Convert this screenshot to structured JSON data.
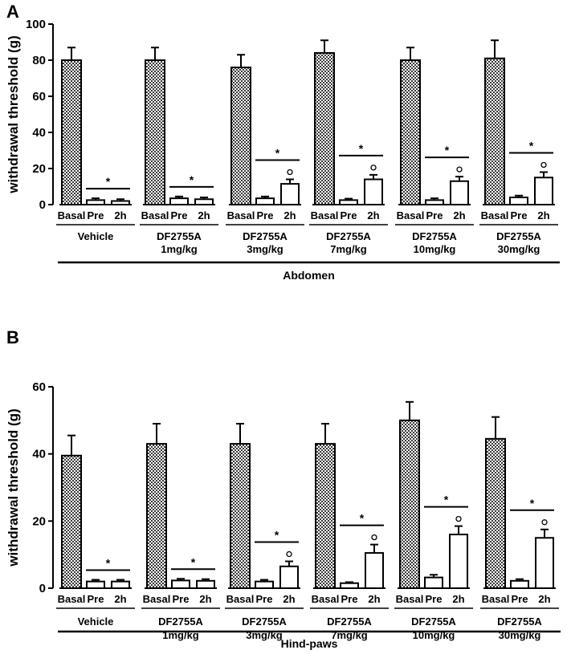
{
  "chart_data": [
    {
      "panel": "A",
      "type": "bar",
      "ylabel": "withdrawal threshold (g)",
      "ylim": [
        0,
        100
      ],
      "yticks": [
        0,
        20,
        40,
        60,
        80,
        100
      ],
      "region": "Abdomen",
      "groups": [
        {
          "label": "Vehicle",
          "dose": "",
          "basal": 80,
          "basal_err": 7,
          "pre": 2.5,
          "pre_err": 1,
          "h2": 2,
          "h2_err": 1,
          "significance": "*",
          "diff_marker": ""
        },
        {
          "label": "DF2755A",
          "dose": "1mg/kg",
          "basal": 80,
          "basal_err": 7,
          "pre": 3.5,
          "pre_err": 1,
          "h2": 3,
          "h2_err": 1,
          "significance": "*",
          "diff_marker": ""
        },
        {
          "label": "DF2755A",
          "dose": "3mg/kg",
          "basal": 76,
          "basal_err": 7,
          "pre": 3.5,
          "pre_err": 1,
          "h2": 11.5,
          "h2_err": 2.5,
          "significance": "*",
          "diff_marker": "°"
        },
        {
          "label": "DF2755A",
          "dose": "7mg/kg",
          "basal": 84,
          "basal_err": 7,
          "pre": 2.5,
          "pre_err": 0.8,
          "h2": 14,
          "h2_err": 2.5,
          "significance": "*",
          "diff_marker": "°"
        },
        {
          "label": "DF2755A",
          "dose": "10mg/kg",
          "basal": 80,
          "basal_err": 7,
          "pre": 2.5,
          "pre_err": 1,
          "h2": 13,
          "h2_err": 2.5,
          "significance": "*",
          "diff_marker": "°"
        },
        {
          "label": "DF2755A",
          "dose": "30mg/kg",
          "basal": 81,
          "basal_err": 10,
          "pre": 4,
          "pre_err": 1,
          "h2": 15,
          "h2_err": 3,
          "significance": "*",
          "diff_marker": "°"
        }
      ],
      "categories": [
        "Basal",
        "Pre",
        "2h"
      ]
    },
    {
      "panel": "B",
      "type": "bar",
      "ylabel": "withdrawal threshold (g)",
      "ylim": [
        0,
        60
      ],
      "yticks": [
        0,
        20,
        40,
        60
      ],
      "region": "Hind-paws",
      "groups": [
        {
          "label": "Vehicle",
          "dose": "",
          "basal": 39.5,
          "basal_err": 6,
          "pre": 2,
          "pre_err": 0.5,
          "h2": 2,
          "h2_err": 0.5,
          "significance": "*",
          "diff_marker": ""
        },
        {
          "label": "DF2755A",
          "dose": "1mg/kg",
          "basal": 43,
          "basal_err": 6,
          "pre": 2.3,
          "pre_err": 0.5,
          "h2": 2.2,
          "h2_err": 0.5,
          "significance": "*",
          "diff_marker": ""
        },
        {
          "label": "DF2755A",
          "dose": "3mg/kg",
          "basal": 43,
          "basal_err": 6,
          "pre": 2,
          "pre_err": 0.5,
          "h2": 6.5,
          "h2_err": 1.5,
          "significance": "*",
          "diff_marker": "°"
        },
        {
          "label": "DF2755A",
          "dose": "7mg/kg",
          "basal": 43,
          "basal_err": 6,
          "pre": 1.5,
          "pre_err": 0.3,
          "h2": 10.5,
          "h2_err": 2.5,
          "significance": "*",
          "diff_marker": "°"
        },
        {
          "label": "DF2755A",
          "dose": "10mg/kg",
          "basal": 50,
          "basal_err": 5.5,
          "pre": 3.2,
          "pre_err": 0.8,
          "h2": 16,
          "h2_err": 2.5,
          "significance": "*",
          "diff_marker": "°"
        },
        {
          "label": "DF2755A",
          "dose": "30mg/kg",
          "basal": 44.5,
          "basal_err": 6.5,
          "pre": 2.2,
          "pre_err": 0.5,
          "h2": 15,
          "h2_err": 2.5,
          "significance": "*",
          "diff_marker": "°"
        }
      ],
      "categories": [
        "Basal",
        "Pre",
        "2h"
      ]
    }
  ]
}
